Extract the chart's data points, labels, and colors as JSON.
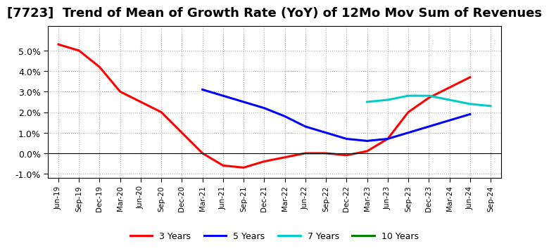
{
  "title": "[7723]  Trend of Mean of Growth Rate (YoY) of 12Mo Mov Sum of Revenues",
  "title_fontsize": 13,
  "ylim": [
    -0.012,
    0.062
  ],
  "yticks": [
    -0.01,
    0.0,
    0.01,
    0.02,
    0.03,
    0.04,
    0.05
  ],
  "background_color": "#ffffff",
  "plot_bg_color": "#ffffff",
  "grid_color": "#aaaaaa",
  "series": {
    "3 Years": {
      "color": "#ff0000",
      "linewidth": 2.2,
      "data": [
        [
          0,
          0.053
        ],
        [
          1,
          0.05
        ],
        [
          2,
          0.042
        ],
        [
          3,
          0.03
        ],
        [
          4,
          0.025
        ],
        [
          5,
          0.02
        ],
        [
          6,
          0.01
        ],
        [
          7,
          0.0
        ],
        [
          8,
          -0.006
        ],
        [
          9,
          -0.007
        ],
        [
          10,
          -0.004
        ],
        [
          11,
          -0.002
        ],
        [
          12,
          0.0
        ],
        [
          13,
          0.0
        ],
        [
          14,
          -0.001
        ],
        [
          15,
          0.001
        ],
        [
          16,
          0.007
        ],
        [
          17,
          0.02
        ],
        [
          18,
          0.027
        ],
        [
          19,
          0.032
        ],
        [
          20,
          0.037
        ]
      ]
    },
    "5 Years": {
      "color": "#0000ff",
      "linewidth": 2.2,
      "data": [
        [
          7,
          0.031
        ],
        [
          8,
          0.028
        ],
        [
          9,
          0.025
        ],
        [
          10,
          0.022
        ],
        [
          11,
          0.018
        ],
        [
          12,
          0.013
        ],
        [
          13,
          0.01
        ],
        [
          14,
          0.007
        ],
        [
          15,
          0.006
        ],
        [
          16,
          0.007
        ],
        [
          17,
          0.01
        ],
        [
          18,
          0.013
        ],
        [
          19,
          0.016
        ],
        [
          20,
          0.019
        ]
      ]
    },
    "7 Years": {
      "color": "#00cccc",
      "linewidth": 2.2,
      "data": [
        [
          15,
          0.025
        ],
        [
          16,
          0.026
        ],
        [
          17,
          0.028
        ],
        [
          18,
          0.028
        ],
        [
          19,
          0.026
        ],
        [
          20,
          0.024
        ],
        [
          21,
          0.023
        ]
      ]
    },
    "10 Years": {
      "color": "#008000",
      "linewidth": 2.2,
      "data": []
    }
  },
  "xtick_labels": [
    "Jun-19",
    "Sep-19",
    "Dec-19",
    "Mar-20",
    "Jun-20",
    "Sep-20",
    "Dec-20",
    "Mar-21",
    "Jun-21",
    "Sep-21",
    "Dec-21",
    "Mar-22",
    "Jun-22",
    "Sep-22",
    "Dec-22",
    "Mar-23",
    "Jun-23",
    "Sep-23",
    "Dec-23",
    "Mar-24",
    "Jun-24",
    "Sep-24"
  ]
}
